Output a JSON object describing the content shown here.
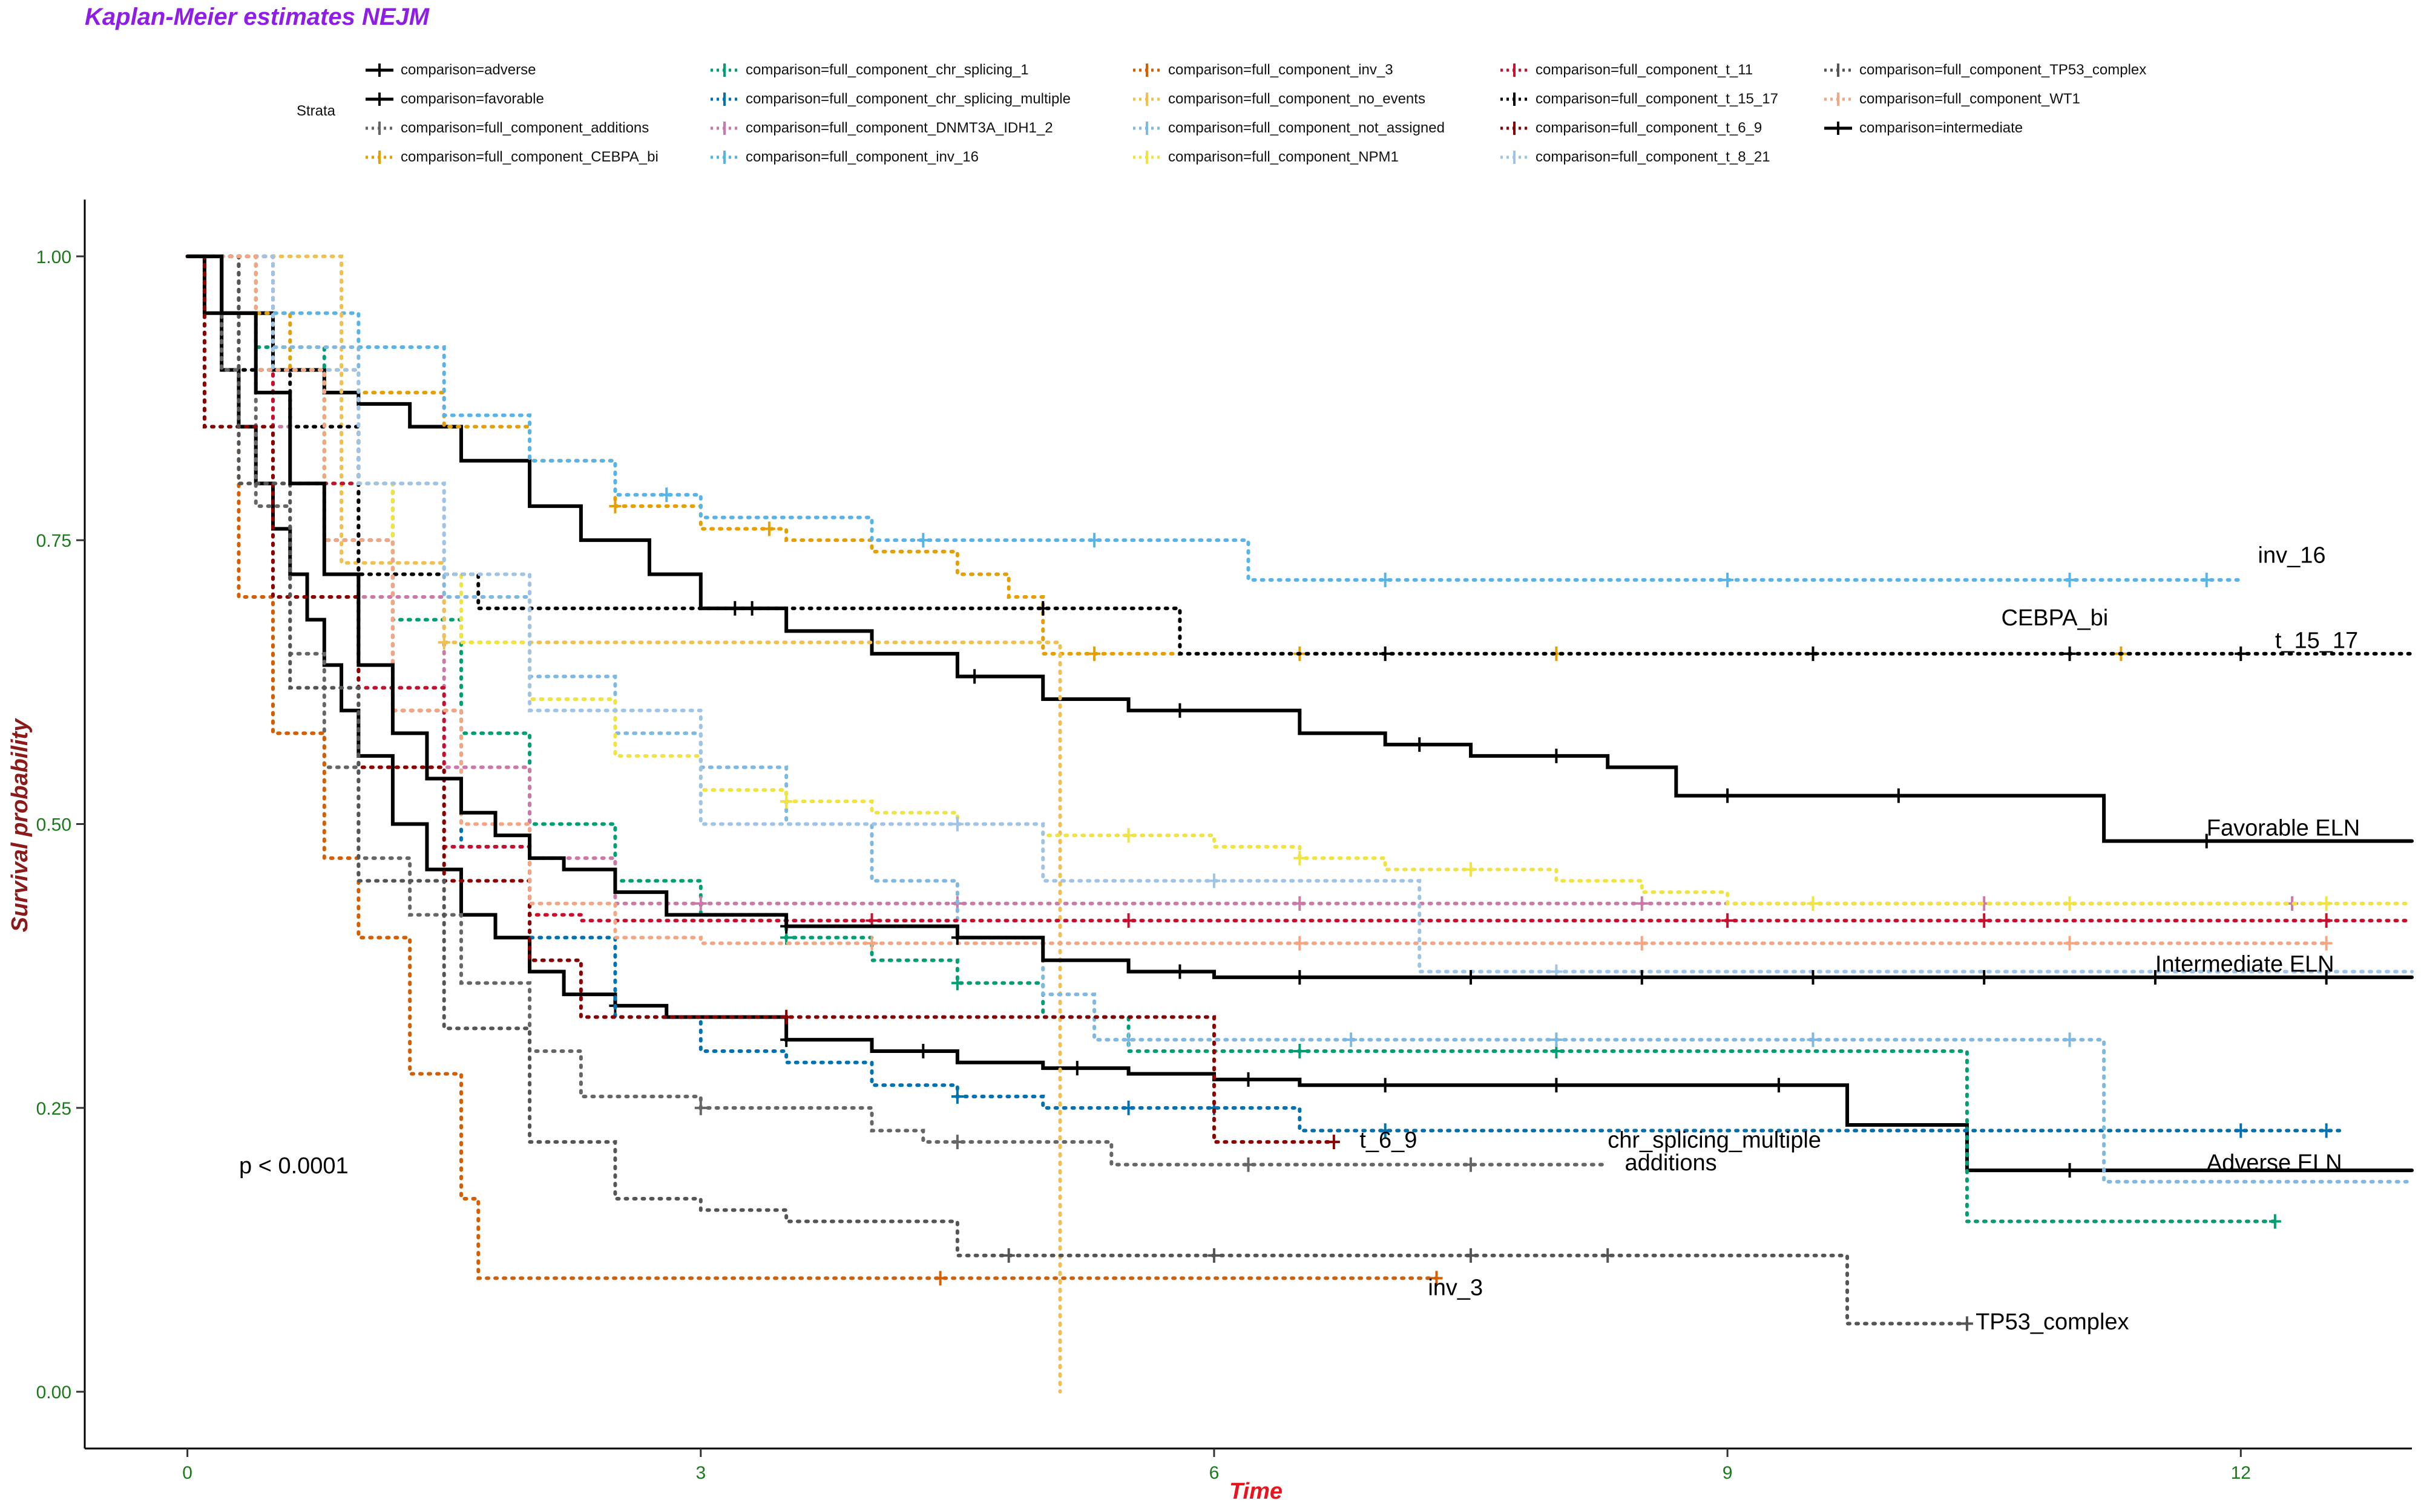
{
  "chart_data": {
    "type": "line",
    "title": "Kaplan-Meier estimates NEJM",
    "xlabel": "Time",
    "ylabel": "Survival probability",
    "xlim": [
      -0.6,
      13.0
    ],
    "ylim": [
      -0.05,
      1.05
    ],
    "x_ticks": [
      "0",
      "3",
      "6",
      "9",
      "12"
    ],
    "x_tick_values": [
      0,
      3,
      6,
      9,
      12
    ],
    "y_ticks": [
      "0.00",
      "0.25",
      "0.50",
      "0.75",
      "1.00"
    ],
    "y_tick_values": [
      0,
      0.25,
      0.5,
      0.75,
      1.0
    ],
    "grid": false,
    "legend": {
      "title": "Strata",
      "placement": "top"
    },
    "pvalue": "p < 0.0001",
    "annotations": [
      {
        "text": "inv_16",
        "x": 12.1,
        "y": 0.73
      },
      {
        "text": "CEBPA_bi",
        "x": 10.6,
        "y": 0.675
      },
      {
        "text": "t_15_17",
        "x": 12.2,
        "y": 0.655
      },
      {
        "text": "Favorable ELN",
        "x": 11.8,
        "y": 0.49
      },
      {
        "text": "Intermediate ELN",
        "x": 11.5,
        "y": 0.37
      },
      {
        "text": "Adverse ELN",
        "x": 11.8,
        "y": 0.195
      },
      {
        "text": "t_6_9",
        "x": 6.85,
        "y": 0.215
      },
      {
        "text": "chr_splicing_multiple",
        "x": 8.3,
        "y": 0.215
      },
      {
        "text": "additions",
        "x": 8.4,
        "y": 0.195
      },
      {
        "text": "inv_3",
        "x": 7.25,
        "y": 0.085
      },
      {
        "text": "TP53_complex",
        "x": 10.45,
        "y": 0.055
      }
    ],
    "series": [
      {
        "name": "comparison=adverse",
        "color": "#000000",
        "style": "solid",
        "x": [
          0,
          0.1,
          0.2,
          0.3,
          0.4,
          0.5,
          0.6,
          0.7,
          0.8,
          0.9,
          1.0,
          1.2,
          1.4,
          1.6,
          1.8,
          2.0,
          2.2,
          2.5,
          2.8,
          3.0,
          3.5,
          4.0,
          4.5,
          5.0,
          5.5,
          6.0,
          6.5,
          7.0,
          8.0,
          9.0,
          9.7,
          10.4,
          11.0,
          13.0
        ],
        "y": [
          1.0,
          0.95,
          0.9,
          0.85,
          0.8,
          0.76,
          0.72,
          0.68,
          0.64,
          0.6,
          0.56,
          0.5,
          0.46,
          0.42,
          0.4,
          0.37,
          0.35,
          0.34,
          0.33,
          0.33,
          0.31,
          0.3,
          0.29,
          0.285,
          0.28,
          0.275,
          0.27,
          0.27,
          0.27,
          0.27,
          0.235,
          0.195,
          0.195,
          0.195
        ],
        "censor_x": [
          2.5,
          3.5,
          4.3,
          5.2,
          6.2,
          7.0,
          8.0,
          9.3,
          11.0
        ]
      },
      {
        "name": "comparison=favorable",
        "color": "#000000",
        "style": "solid",
        "x": [
          0,
          0.2,
          0.5,
          0.8,
          1.0,
          1.3,
          1.6,
          2.0,
          2.3,
          2.7,
          3.0,
          3.5,
          4.0,
          4.5,
          5.0,
          5.5,
          6.0,
          6.5,
          7.0,
          7.5,
          8.0,
          8.3,
          8.7,
          9.5,
          10.5,
          11.2,
          13.0
        ],
        "y": [
          1.0,
          0.95,
          0.9,
          0.88,
          0.87,
          0.85,
          0.82,
          0.78,
          0.75,
          0.72,
          0.69,
          0.67,
          0.65,
          0.63,
          0.61,
          0.6,
          0.6,
          0.58,
          0.57,
          0.56,
          0.56,
          0.55,
          0.525,
          0.525,
          0.525,
          0.485,
          0.485
        ],
        "censor_x": [
          3.3,
          4.6,
          5.8,
          7.2,
          8.0,
          9.0,
          10.0,
          11.8
        ]
      },
      {
        "name": "comparison=full_component_additions",
        "color": "#666666",
        "style": "dotted",
        "x": [
          0,
          0.2,
          0.4,
          0.6,
          0.8,
          1.0,
          1.3,
          1.6,
          2.0,
          2.3,
          3.0,
          4.0,
          4.3,
          4.8,
          5.0,
          5.4,
          8.3
        ],
        "y": [
          1.0,
          0.9,
          0.78,
          0.65,
          0.55,
          0.47,
          0.42,
          0.36,
          0.3,
          0.26,
          0.25,
          0.23,
          0.22,
          0.22,
          0.22,
          0.2,
          0.2
        ],
        "censor_x": [
          3.0,
          4.5,
          6.2,
          7.5
        ]
      },
      {
        "name": "comparison=full_component_CEBPA_bi",
        "color": "#e69f00",
        "style": "dotted",
        "x": [
          0,
          0.3,
          0.6,
          1.0,
          1.5,
          2.0,
          2.5,
          3.0,
          3.5,
          4.0,
          4.5,
          4.8,
          5.0,
          11.3
        ],
        "y": [
          1.0,
          0.95,
          0.9,
          0.88,
          0.85,
          0.82,
          0.78,
          0.76,
          0.75,
          0.74,
          0.72,
          0.7,
          0.65,
          0.65
        ],
        "censor_x": [
          2.5,
          3.4,
          5.3,
          6.5,
          8.0,
          9.5,
          11.3
        ]
      },
      {
        "name": "comparison=full_component_chr_splicing_1",
        "color": "#009e73",
        "style": "dotted",
        "x": [
          0,
          0.4,
          0.8,
          1.2,
          1.6,
          2.0,
          2.5,
          3.0,
          3.5,
          4.0,
          4.5,
          5.0,
          5.5,
          6.0,
          10.4,
          12.2
        ],
        "y": [
          1.0,
          0.92,
          0.8,
          0.68,
          0.58,
          0.5,
          0.45,
          0.42,
          0.4,
          0.38,
          0.36,
          0.33,
          0.3,
          0.3,
          0.15,
          0.15
        ],
        "censor_x": [
          3.5,
          4.5,
          6.5,
          8.0,
          12.2
        ]
      },
      {
        "name": "comparison=full_component_chr_splicing_multiple",
        "color": "#0072b2",
        "style": "dotted",
        "x": [
          0,
          0.4,
          0.8,
          1.2,
          1.6,
          2.0,
          2.5,
          3.0,
          3.5,
          4.0,
          4.5,
          5.0,
          5.5,
          6.0,
          6.5,
          12.6
        ],
        "y": [
          1.0,
          0.9,
          0.75,
          0.6,
          0.48,
          0.4,
          0.33,
          0.3,
          0.29,
          0.27,
          0.26,
          0.25,
          0.25,
          0.25,
          0.23,
          0.23
        ],
        "censor_x": [
          4.5,
          5.5,
          6.0,
          7.0,
          12.0,
          12.5
        ]
      },
      {
        "name": "comparison=full_component_DNMT3A_IDH1_2",
        "color": "#cc79a7",
        "style": "dotted",
        "x": [
          0,
          0.5,
          1.0,
          1.5,
          2.0,
          2.5,
          3.0,
          12.5
        ],
        "y": [
          1.0,
          0.85,
          0.7,
          0.55,
          0.47,
          0.43,
          0.43,
          0.43
        ],
        "censor_x": [
          3.0,
          4.5,
          6.5,
          8.5,
          10.5,
          12.3
        ]
      },
      {
        "name": "comparison=full_component_inv_16",
        "color": "#56b4e9",
        "style": "dotted",
        "x": [
          0,
          0.5,
          1.0,
          1.5,
          2.0,
          2.5,
          3.0,
          3.5,
          4.0,
          5.0,
          6.2,
          12.0
        ],
        "y": [
          1.0,
          0.95,
          0.92,
          0.86,
          0.82,
          0.79,
          0.77,
          0.77,
          0.75,
          0.75,
          0.715,
          0.715
        ],
        "censor_x": [
          2.8,
          4.3,
          5.3,
          7.0,
          9.0,
          11.0,
          11.8
        ]
      },
      {
        "name": "comparison=full_component_inv_3",
        "color": "#d55e00",
        "style": "dotted",
        "x": [
          0,
          0.1,
          0.3,
          0.5,
          0.8,
          1.0,
          1.3,
          1.6,
          1.7,
          7.3
        ],
        "y": [
          1.0,
          0.85,
          0.7,
          0.58,
          0.47,
          0.4,
          0.28,
          0.17,
          0.1,
          0.1
        ],
        "censor_x": [
          4.4,
          7.3
        ]
      },
      {
        "name": "comparison=full_component_no_events",
        "color": "#f0c050",
        "style": "dotted",
        "x": [
          0,
          0.7,
          0.9,
          1.5,
          2.2,
          5.1,
          5.1
        ],
        "y": [
          1.0,
          1.0,
          0.73,
          0.66,
          0.66,
          0.66,
          0.0
        ],
        "censor_x": [
          1.5
        ]
      },
      {
        "name": "comparison=full_component_not_assigned",
        "color": "#7fb8e0",
        "style": "dotted",
        "x": [
          0,
          0.5,
          1.0,
          1.5,
          2.0,
          2.5,
          3.0,
          3.5,
          4.0,
          4.5,
          5.0,
          5.3,
          8.5,
          11.2,
          11.2,
          13.0
        ],
        "y": [
          1.0,
          0.92,
          0.8,
          0.7,
          0.63,
          0.58,
          0.55,
          0.5,
          0.45,
          0.4,
          0.35,
          0.31,
          0.31,
          0.31,
          0.185,
          0.185
        ],
        "censor_x": [
          5.5,
          6.8,
          8.0,
          9.5,
          11.0
        ]
      },
      {
        "name": "comparison=full_component_NPM1",
        "color": "#f0e442",
        "style": "dotted",
        "x": [
          0,
          0.4,
          0.8,
          1.2,
          1.6,
          2.0,
          2.5,
          3.0,
          3.5,
          4.0,
          4.5,
          5.0,
          5.5,
          6.0,
          6.5,
          7.0,
          8.0,
          8.5,
          9.0,
          13.0
        ],
        "y": [
          1.0,
          0.9,
          0.8,
          0.72,
          0.66,
          0.61,
          0.56,
          0.53,
          0.52,
          0.51,
          0.5,
          0.49,
          0.49,
          0.48,
          0.47,
          0.46,
          0.45,
          0.44,
          0.43,
          0.43
        ],
        "censor_x": [
          3.5,
          4.5,
          5.5,
          6.5,
          7.5,
          9.5,
          11.0,
          12.5
        ]
      },
      {
        "name": "comparison=full_component_t_11",
        "color": "#c8102e",
        "style": "dotted",
        "x": [
          0,
          0.5,
          1.0,
          1.5,
          2.0,
          2.3,
          13.0
        ],
        "y": [
          1.0,
          0.8,
          0.62,
          0.48,
          0.42,
          0.415,
          0.415
        ],
        "censor_x": [
          4.0,
          5.5,
          9.0,
          10.5,
          12.5
        ]
      },
      {
        "name": "comparison=full_component_t_15_17",
        "color": "#000000",
        "style": "dotted",
        "x": [
          0,
          0.3,
          0.6,
          1.0,
          1.7,
          2.5,
          5.8,
          13.0
        ],
        "y": [
          1.0,
          0.9,
          0.85,
          0.72,
          0.69,
          0.69,
          0.65,
          0.65
        ],
        "censor_x": [
          3.2,
          5.0,
          7.0,
          9.5,
          11.0,
          12.0
        ]
      },
      {
        "name": "comparison=full_component_t_6_9",
        "color": "#8b0000",
        "style": "dotted",
        "x": [
          0,
          0.1,
          0.5,
          1.0,
          1.5,
          2.0,
          2.3,
          6.0,
          6.0,
          6.7
        ],
        "y": [
          1.0,
          0.85,
          0.7,
          0.55,
          0.45,
          0.38,
          0.33,
          0.33,
          0.22,
          0.22
        ],
        "censor_x": [
          3.5,
          6.7
        ]
      },
      {
        "name": "comparison=full_component_t_8_21",
        "color": "#a0c4e6",
        "style": "dotted",
        "x": [
          0,
          0.5,
          1.0,
          1.5,
          2.0,
          3.0,
          5.0,
          7.2,
          7.2,
          13.0
        ],
        "y": [
          1.0,
          0.9,
          0.8,
          0.72,
          0.6,
          0.5,
          0.45,
          0.45,
          0.37,
          0.37
        ],
        "censor_x": [
          4.5,
          6.0,
          8.0
        ]
      },
      {
        "name": "comparison=full_component_TP53_complex",
        "color": "#555555",
        "style": "dotted",
        "x": [
          0,
          0.3,
          0.6,
          1.0,
          1.5,
          2.0,
          2.5,
          3.0,
          3.5,
          4.0,
          4.5,
          5.0,
          9.7,
          9.7,
          10.4
        ],
        "y": [
          1.0,
          0.8,
          0.62,
          0.45,
          0.32,
          0.22,
          0.17,
          0.16,
          0.15,
          0.15,
          0.12,
          0.12,
          0.12,
          0.06,
          0.06
        ],
        "censor_x": [
          4.8,
          6.0,
          7.5,
          8.3,
          10.4
        ]
      },
      {
        "name": "comparison=full_component_WT1",
        "color": "#f4a582",
        "style": "dotted",
        "x": [
          0,
          0.4,
          0.8,
          1.2,
          1.6,
          2.0,
          2.5,
          3.0,
          12.5
        ],
        "y": [
          1.0,
          0.9,
          0.75,
          0.6,
          0.5,
          0.43,
          0.4,
          0.395,
          0.395
        ],
        "censor_x": [
          4.0,
          6.5,
          8.5,
          11.0,
          12.5
        ]
      },
      {
        "name": "comparison=intermediate",
        "color": "#000000",
        "style": "solid",
        "x": [
          0,
          0.2,
          0.4,
          0.6,
          0.8,
          1.0,
          1.2,
          1.4,
          1.6,
          1.8,
          2.0,
          2.2,
          2.5,
          2.8,
          3.0,
          3.5,
          4.0,
          4.5,
          5.0,
          5.5,
          6.0,
          13.0
        ],
        "y": [
          1.0,
          0.95,
          0.88,
          0.8,
          0.72,
          0.64,
          0.58,
          0.54,
          0.51,
          0.49,
          0.47,
          0.46,
          0.44,
          0.42,
          0.42,
          0.41,
          0.41,
          0.4,
          0.38,
          0.37,
          0.365,
          0.365
        ],
        "censor_x": [
          3.5,
          4.5,
          5.8,
          6.5,
          7.5,
          8.5,
          9.5,
          10.5,
          11.5,
          12.5
        ]
      }
    ]
  }
}
